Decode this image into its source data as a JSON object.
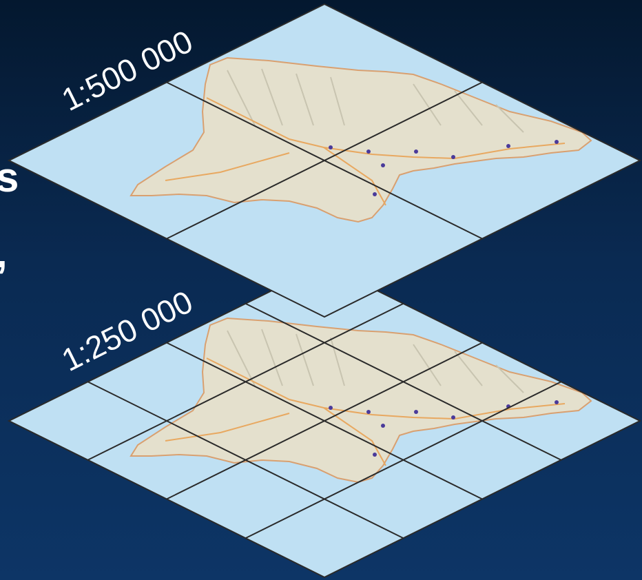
{
  "layers": [
    {
      "scale_label": "1:500 000",
      "grid": 2
    },
    {
      "scale_label": "1:250 000",
      "grid": 4
    }
  ],
  "partial_text": [
    "s",
    ","
  ],
  "colors": {
    "background_top": "#04182f",
    "background_bottom": "#0d3566",
    "ocean": "#bfe0f3",
    "land": "#e4e0cd",
    "grid_line": "#2a2a2a",
    "road": "#e8a860",
    "city_marker": "#4a3a9a"
  }
}
